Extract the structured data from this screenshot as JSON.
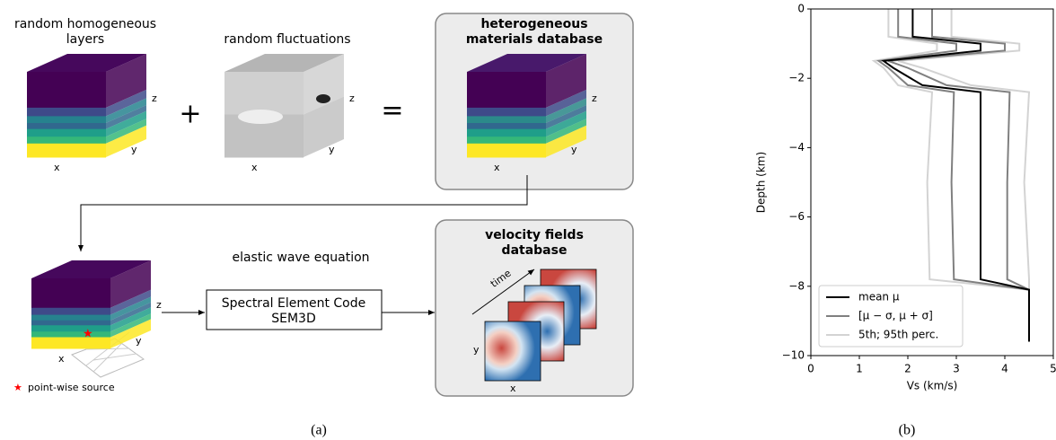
{
  "panel_a": {
    "label": "(a)",
    "layers_title": [
      "random homogeneous",
      "layers"
    ],
    "fluctuations_title": "random fluctuations",
    "plus": "+",
    "equals": "=",
    "materials_db": [
      "heterogeneous",
      "materials database"
    ],
    "axes": {
      "x": "x",
      "y": "y",
      "z": "z"
    },
    "wave_equation": "elastic wave equation",
    "solver": [
      "Spectral Element Code",
      "SEM3D"
    ],
    "velocity_db": [
      "velocity fields",
      "database"
    ],
    "time": "time",
    "source": "point-wise source"
  },
  "panel_b": {
    "label": "(b)"
  },
  "chart_data": {
    "type": "line",
    "xlabel": "Vs (km/s)",
    "ylabel": "Depth (km)",
    "xlim": [
      0,
      5
    ],
    "ylim": [
      -10,
      0
    ],
    "xticks": [
      0,
      1,
      2,
      3,
      4,
      5
    ],
    "yticks": [
      {
        "value": -10,
        "label": "−10"
      },
      {
        "value": -8,
        "label": "−8"
      },
      {
        "value": -6,
        "label": "−6"
      },
      {
        "value": -4,
        "label": "−4"
      },
      {
        "value": -2,
        "label": "−2"
      },
      0
    ],
    "legend": "lower left",
    "depth": [
      0,
      -0.8,
      -1.0,
      -1.2,
      -1.5,
      -1.7,
      -2.2,
      -2.4,
      -5,
      -7.8,
      -8.1,
      -9.6
    ],
    "series": [
      {
        "name": "mean μ",
        "color": "#000000",
        "values": [
          2.1,
          2.1,
          3.5,
          3.5,
          1.5,
          1.7,
          2.3,
          3.5,
          3.5,
          3.5,
          4.5,
          4.5
        ]
      },
      {
        "name": "[μ − σ, μ + σ]",
        "color": "#808080",
        "lower": [
          1.8,
          1.8,
          3.0,
          3.0,
          1.4,
          1.6,
          2.0,
          2.95,
          2.9,
          2.95,
          4.5,
          4.5
        ],
        "upper": [
          2.5,
          2.5,
          4.0,
          4.0,
          1.6,
          2.0,
          2.8,
          4.1,
          4.05,
          4.05,
          4.5,
          4.5
        ]
      },
      {
        "name": "5th; 95th perc.",
        "color": "#d3d3d3",
        "lower": [
          1.6,
          1.6,
          2.6,
          2.6,
          1.3,
          1.5,
          1.8,
          2.5,
          2.4,
          2.45,
          4.5,
          4.5
        ],
        "upper": [
          2.9,
          2.9,
          4.3,
          4.3,
          1.8,
          2.3,
          3.3,
          4.5,
          4.4,
          4.5,
          4.5,
          4.5
        ]
      }
    ]
  }
}
